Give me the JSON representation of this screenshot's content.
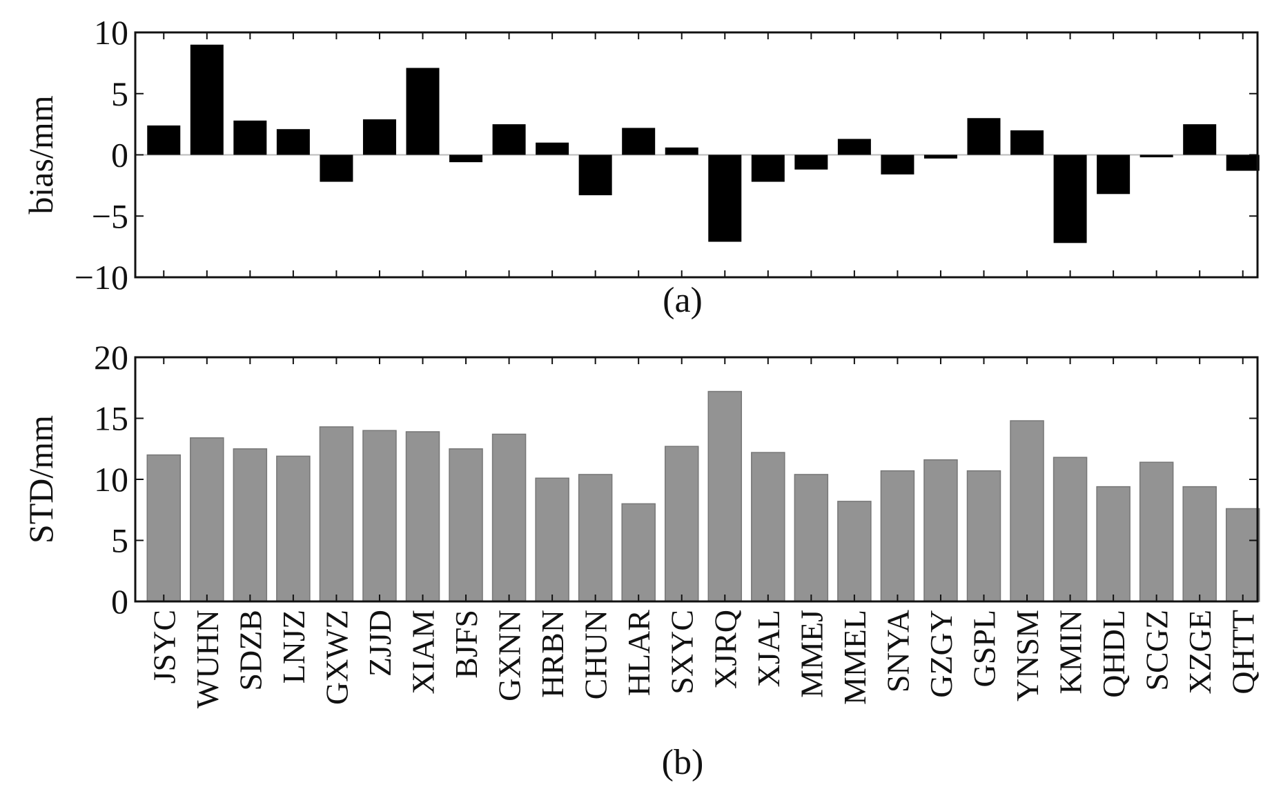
{
  "chart_data": [
    {
      "type": "bar",
      "panel_label": "(a)",
      "ylabel": "bias/mm",
      "ylim": [
        -10,
        10
      ],
      "yticks": [
        -10,
        -5,
        0,
        5,
        10
      ],
      "ytick_labels": [
        "−10",
        "−5",
        "0",
        "5",
        "10"
      ],
      "grid": false,
      "zero_line": true,
      "bar_color": "#000000",
      "categories": [
        "JSYC",
        "WUHN",
        "SDZB",
        "LNJZ",
        "GXWZ",
        "ZJJD",
        "XIAM",
        "BJFS",
        "GXNN",
        "HRBN",
        "CHUN",
        "HLAR",
        "SXYC",
        "XJRQ",
        "XJAL",
        "MMEJ",
        "MMEL",
        "SNYA",
        "GZGY",
        "GSPL",
        "YNSM",
        "KMIN",
        "QHDL",
        "SCGZ",
        "XZGE",
        "QHTT"
      ],
      "values": [
        2.4,
        9.0,
        2.8,
        2.1,
        -2.2,
        2.9,
        7.1,
        -0.6,
        2.5,
        1.0,
        -3.3,
        2.2,
        0.6,
        -7.1,
        -2.2,
        -1.2,
        1.3,
        -1.6,
        -0.3,
        3.0,
        2.0,
        -7.2,
        -3.2,
        -0.2,
        2.5,
        -1.3
      ]
    },
    {
      "type": "bar",
      "panel_label": "(b)",
      "ylabel": "STD/mm",
      "ylim": [
        0,
        20
      ],
      "yticks": [
        0,
        5,
        10,
        15,
        20
      ],
      "ytick_labels": [
        "0",
        "5",
        "10",
        "15",
        "20"
      ],
      "grid": false,
      "bar_color": "#939393",
      "categories": [
        "JSYC",
        "WUHN",
        "SDZB",
        "LNJZ",
        "GXWZ",
        "ZJJD",
        "XIAM",
        "BJFS",
        "GXNN",
        "HRBN",
        "CHUN",
        "HLAR",
        "SXYC",
        "XJRQ",
        "XJAL",
        "MMEJ",
        "MMEL",
        "SNYA",
        "GZGY",
        "GSPL",
        "YNSM",
        "KMIN",
        "QHDL",
        "SCGZ",
        "XZGE",
        "QHTT"
      ],
      "values": [
        12.0,
        13.4,
        12.5,
        11.9,
        14.3,
        14.0,
        13.9,
        12.5,
        13.7,
        10.1,
        10.4,
        8.0,
        12.7,
        17.2,
        12.2,
        10.4,
        8.2,
        10.7,
        11.6,
        10.7,
        14.8,
        11.8,
        9.4,
        11.4,
        9.4,
        7.6
      ]
    }
  ]
}
